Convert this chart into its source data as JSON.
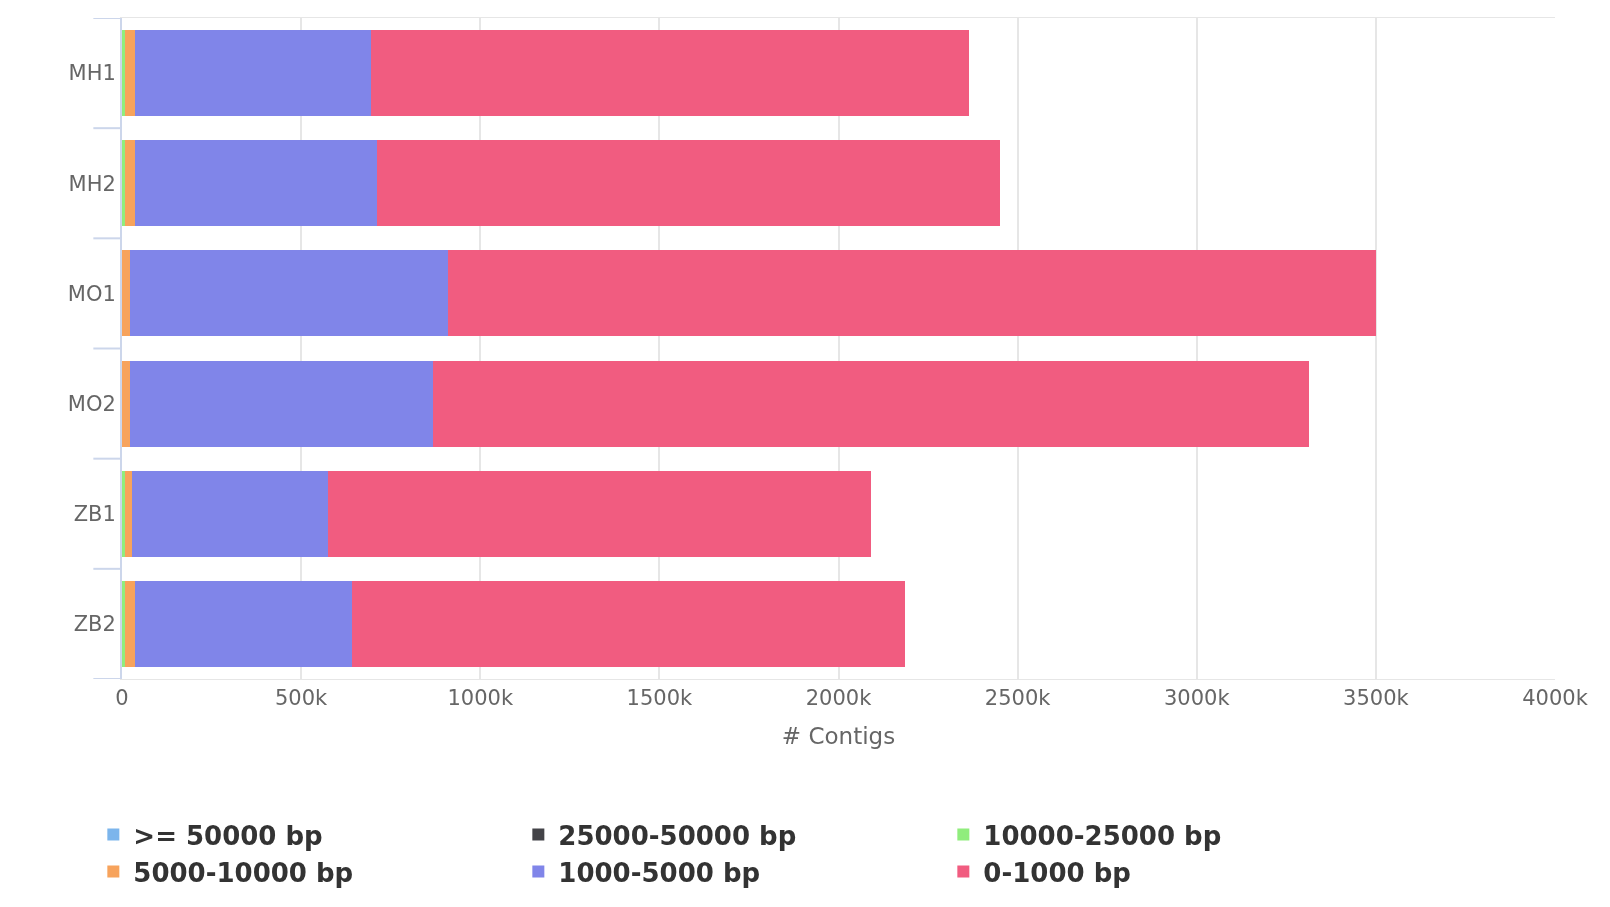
{
  "chart_data": {
    "type": "bar",
    "orientation": "horizontal",
    "stacked": true,
    "xlabel": "# Contigs",
    "categories": [
      "MH1",
      "MH2",
      "MO1",
      "MO2",
      "ZB1",
      "ZB2"
    ],
    "series": [
      {
        "name": ">= 50000 bp",
        "color": "#7cb5ec",
        "values": [
          0,
          0,
          0,
          0,
          0,
          0
        ]
      },
      {
        "name": "25000-50000 bp",
        "color": "#434348",
        "values": [
          0,
          0,
          0,
          0,
          0,
          0
        ]
      },
      {
        "name": "10000-25000 bp",
        "color": "#90ed7d",
        "values": [
          7,
          7,
          0,
          0,
          7,
          7
        ]
      },
      {
        "name": "5000-10000 bp",
        "color": "#f7a35c",
        "values": [
          29,
          29,
          22,
          22,
          22,
          29
        ]
      },
      {
        "name": "1000-5000 bp",
        "color": "#8085e9",
        "values": [
          660,
          677,
          889,
          845,
          547,
          607
        ]
      },
      {
        "name": "0-1000 bp",
        "color": "#f15c80",
        "values": [
          1669,
          1739,
          2589,
          2446,
          1515,
          1543
        ]
      }
    ],
    "xlim": [
      0,
      4000
    ],
    "xticks": [
      0,
      {
        "value": 500,
        "label": "500k"
      },
      {
        "value": 1000,
        "label": "1000k"
      },
      {
        "value": 1500,
        "label": "1500k"
      },
      {
        "value": 2000,
        "label": "2000k"
      },
      {
        "value": 2500,
        "label": "2500k"
      },
      {
        "value": 3000,
        "label": "3000k"
      },
      {
        "value": 3500,
        "label": "3500k"
      },
      {
        "value": 4000,
        "label": "4000k"
      }
    ],
    "grid": "x",
    "legend": "bottom"
  }
}
